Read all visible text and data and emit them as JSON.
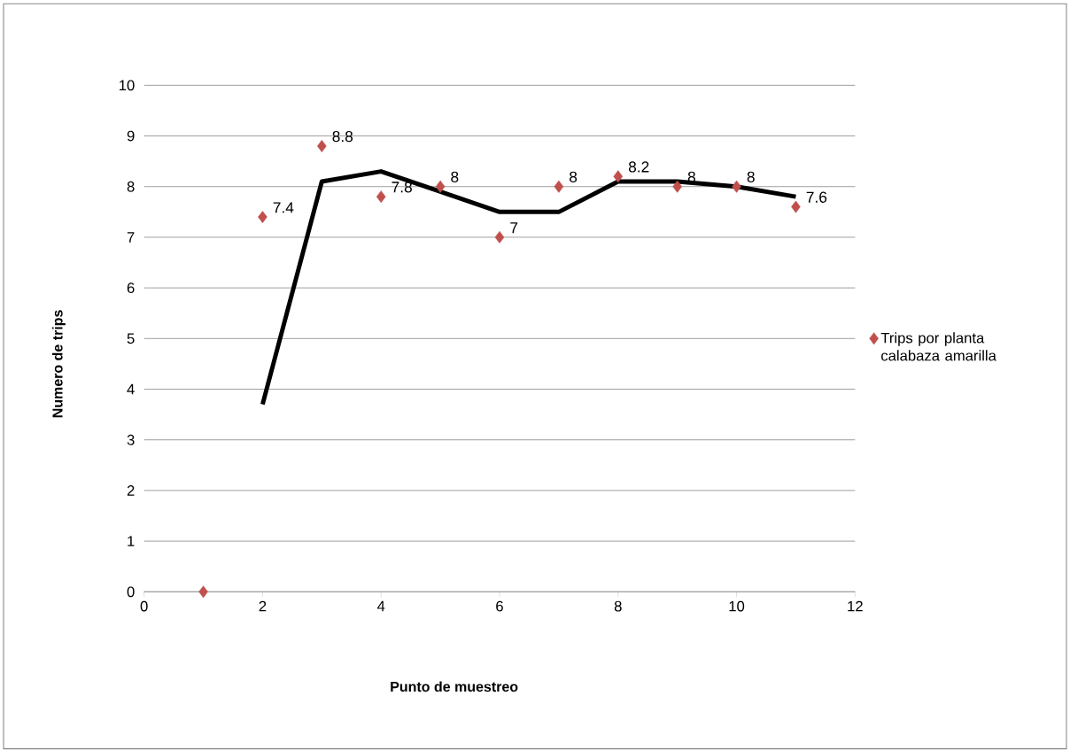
{
  "chart_data": {
    "type": "scatter",
    "xlabel": "Punto de muestreo",
    "ylabel": "Numero de trips",
    "series": [
      {
        "name": "Trips por planta calabaza amarilla",
        "color": "#c0504d",
        "x": [
          1,
          2,
          3,
          4,
          5,
          6,
          7,
          8,
          9,
          10,
          11
        ],
        "values": [
          0,
          7.4,
          8.8,
          7.8,
          8,
          7,
          8,
          8.2,
          8,
          8,
          7.6
        ],
        "value_labels": [
          null,
          "7.4",
          "8.8",
          "7.8",
          "8",
          "7",
          "8",
          "8.2",
          "8",
          "8",
          "7.6"
        ]
      },
      {
        "type": "line",
        "color": "#000000",
        "marker": "none",
        "x": [
          2,
          3,
          4,
          5,
          6,
          7,
          8,
          9,
          10,
          11
        ],
        "values": [
          3.7,
          8.1,
          8.3,
          7.9,
          7.5,
          7.5,
          8.1,
          8.1,
          8.0,
          7.8
        ]
      }
    ],
    "xlim": [
      0,
      12
    ],
    "xticks": [
      0,
      2,
      4,
      6,
      8,
      10,
      12
    ],
    "ylim": [
      0,
      10
    ],
    "yticks": [
      0,
      1,
      2,
      3,
      4,
      5,
      6,
      7,
      8,
      9,
      10
    ],
    "grid": "y",
    "legend": "right",
    "marker": "diamond",
    "line_style": "solid"
  }
}
